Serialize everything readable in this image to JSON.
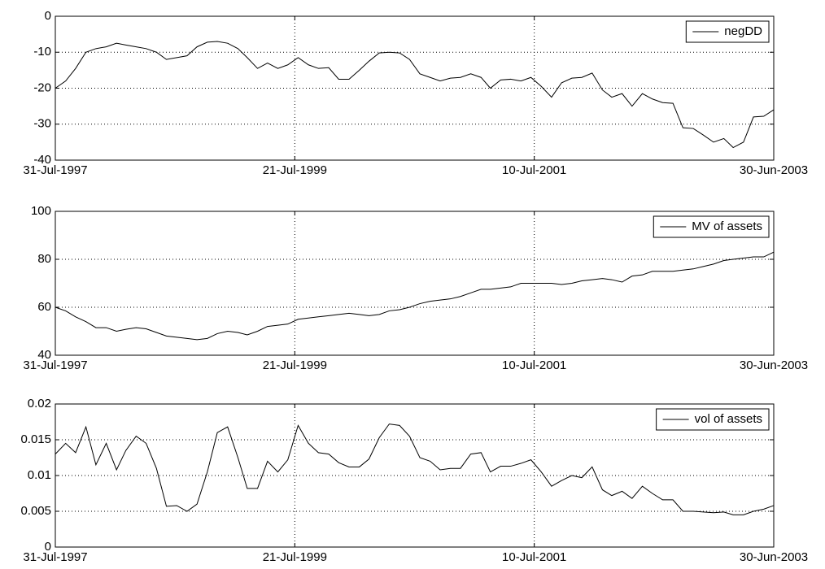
{
  "chart_data": [
    {
      "type": "line",
      "x": [
        "1997-07-31",
        "1997-08-31",
        "1997-09-30",
        "1997-10-31",
        "1997-11-30",
        "1997-12-31",
        "1998-01-31",
        "1998-02-28",
        "1998-03-31",
        "1998-04-30",
        "1998-05-31",
        "1998-06-30",
        "1998-07-31",
        "1998-08-31",
        "1998-09-30",
        "1998-10-31",
        "1998-11-30",
        "1998-12-31",
        "1999-01-31",
        "1999-02-28",
        "1999-03-31",
        "1999-04-30",
        "1999-05-31",
        "1999-06-30",
        "1999-07-31",
        "1999-08-31",
        "1999-09-30",
        "1999-10-31",
        "1999-11-30",
        "1999-12-31",
        "2000-01-31",
        "2000-02-29",
        "2000-03-31",
        "2000-04-30",
        "2000-05-31",
        "2000-06-30",
        "2000-07-31",
        "2000-08-31",
        "2000-09-30",
        "2000-10-31",
        "2000-11-30",
        "2000-12-31",
        "2001-01-31",
        "2001-02-28",
        "2001-03-31",
        "2001-04-30",
        "2001-05-31",
        "2001-06-30",
        "2001-07-31",
        "2001-08-31",
        "2001-09-30",
        "2001-10-31",
        "2001-11-30",
        "2001-12-31",
        "2002-01-31",
        "2002-02-28",
        "2002-03-31",
        "2002-04-30",
        "2002-05-31",
        "2002-06-30",
        "2002-07-31",
        "2002-08-31",
        "2002-09-30",
        "2002-10-31",
        "2002-11-30",
        "2002-12-31",
        "2003-01-31",
        "2003-02-28",
        "2003-03-31",
        "2003-04-30",
        "2003-05-31",
        "2003-06-30"
      ],
      "series": [
        {
          "name": "negDD",
          "color": "#000000",
          "values": [
            -20,
            -18,
            -14.5,
            -10,
            -9,
            -8.5,
            -7.5,
            -8,
            -8.5,
            -9,
            -10,
            -12,
            -11.5,
            -11,
            -8.5,
            -7.2,
            -7,
            -7.5,
            -9,
            -11.5,
            -14.5,
            -13,
            -14.5,
            -13.5,
            -11.5,
            -13.5,
            -14.5,
            -14.3,
            -17.5,
            -17.5,
            -15,
            -12.5,
            -10.2,
            -10,
            -10.2,
            -12,
            -16,
            -17,
            -18,
            -17.2,
            -17,
            -16,
            -17,
            -20,
            -17.7,
            -17.5,
            -18,
            -17,
            -19.5,
            -22.5,
            -18.5,
            -17.2,
            -17,
            -15.8,
            -20.5,
            -22.5,
            -21.5,
            -25,
            -21.5,
            -23,
            -24,
            -24.2,
            -31,
            -31.2,
            -33,
            -35,
            -34,
            -36.5,
            -35,
            -28,
            -27.8,
            -26
          ]
        }
      ],
      "xlim": [
        "1997-07-31",
        "2003-06-30"
      ],
      "xticks": [
        {
          "value": "1997-07-31",
          "label": "31-Jul-1997"
        },
        {
          "value": "1999-07-21",
          "label": "21-Jul-1999"
        },
        {
          "value": "2001-07-10",
          "label": "10-Jul-2001"
        },
        {
          "value": "2003-06-30",
          "label": "30-Jun-2003"
        }
      ],
      "ylim": [
        -40,
        0
      ],
      "yticks": [
        -40,
        -30,
        -20,
        -10,
        0
      ],
      "grid": true,
      "legend": "upper right"
    },
    {
      "type": "line",
      "x": [
        "1997-07-31",
        "1997-08-31",
        "1997-09-30",
        "1997-10-31",
        "1997-11-30",
        "1997-12-31",
        "1998-01-31",
        "1998-02-28",
        "1998-03-31",
        "1998-04-30",
        "1998-05-31",
        "1998-06-30",
        "1998-07-31",
        "1998-08-31",
        "1998-09-30",
        "1998-10-31",
        "1998-11-30",
        "1998-12-31",
        "1999-01-31",
        "1999-02-28",
        "1999-03-31",
        "1999-04-30",
        "1999-05-31",
        "1999-06-30",
        "1999-07-31",
        "1999-08-31",
        "1999-09-30",
        "1999-10-31",
        "1999-11-30",
        "1999-12-31",
        "2000-01-31",
        "2000-02-29",
        "2000-03-31",
        "2000-04-30",
        "2000-05-31",
        "2000-06-30",
        "2000-07-31",
        "2000-08-31",
        "2000-09-30",
        "2000-10-31",
        "2000-11-30",
        "2000-12-31",
        "2001-01-31",
        "2001-02-28",
        "2001-03-31",
        "2001-04-30",
        "2001-05-31",
        "2001-06-30",
        "2001-07-31",
        "2001-08-31",
        "2001-09-30",
        "2001-10-31",
        "2001-11-30",
        "2001-12-31",
        "2002-01-31",
        "2002-02-28",
        "2002-03-31",
        "2002-04-30",
        "2002-05-31",
        "2002-06-30",
        "2002-07-31",
        "2002-08-31",
        "2002-09-30",
        "2002-10-31",
        "2002-11-30",
        "2002-12-31",
        "2003-01-31",
        "2003-02-28",
        "2003-03-31",
        "2003-04-30",
        "2003-05-31",
        "2003-06-30"
      ],
      "series": [
        {
          "name": "MV of assets",
          "color": "#000000",
          "values": [
            60,
            58.5,
            56,
            54,
            51.5,
            51.5,
            50,
            50.8,
            51.5,
            51,
            49.5,
            48,
            47.5,
            47,
            46.5,
            47,
            49,
            50,
            49.5,
            48.5,
            50,
            52,
            52.5,
            53,
            55,
            55.5,
            56,
            56.5,
            57,
            57.5,
            57,
            56.5,
            57,
            58.5,
            59,
            60,
            61.5,
            62.5,
            63,
            63.5,
            64.5,
            66,
            67.5,
            67.5,
            68,
            68.5,
            70,
            70,
            70,
            70,
            69.5,
            70,
            71,
            71.5,
            72,
            71.5,
            70.5,
            73,
            73.5,
            75,
            75,
            75,
            75.5,
            76,
            77,
            78,
            79.5,
            80,
            80.5,
            81,
            81,
            83
          ]
        }
      ],
      "xlim": [
        "1997-07-31",
        "2003-06-30"
      ],
      "xticks": [
        {
          "value": "1997-07-31",
          "label": "31-Jul-1997"
        },
        {
          "value": "1999-07-21",
          "label": "21-Jul-1999"
        },
        {
          "value": "2001-07-10",
          "label": "10-Jul-2001"
        },
        {
          "value": "2003-06-30",
          "label": "30-Jun-2003"
        }
      ],
      "ylim": [
        40,
        100
      ],
      "yticks": [
        40,
        60,
        80,
        100
      ],
      "grid": true,
      "legend": "upper right"
    },
    {
      "type": "line",
      "x": [
        "1997-07-31",
        "1997-08-31",
        "1997-09-30",
        "1997-10-31",
        "1997-11-30",
        "1997-12-31",
        "1998-01-31",
        "1998-02-28",
        "1998-03-31",
        "1998-04-30",
        "1998-05-31",
        "1998-06-30",
        "1998-07-31",
        "1998-08-31",
        "1998-09-30",
        "1998-10-31",
        "1998-11-30",
        "1998-12-31",
        "1999-01-31",
        "1999-02-28",
        "1999-03-31",
        "1999-04-30",
        "1999-05-31",
        "1999-06-30",
        "1999-07-31",
        "1999-08-31",
        "1999-09-30",
        "1999-10-31",
        "1999-11-30",
        "1999-12-31",
        "2000-01-31",
        "2000-02-29",
        "2000-03-31",
        "2000-04-30",
        "2000-05-31",
        "2000-06-30",
        "2000-07-31",
        "2000-08-31",
        "2000-09-30",
        "2000-10-31",
        "2000-11-30",
        "2000-12-31",
        "2001-01-31",
        "2001-02-28",
        "2001-03-31",
        "2001-04-30",
        "2001-05-31",
        "2001-06-30",
        "2001-07-31",
        "2001-08-31",
        "2001-09-30",
        "2001-10-31",
        "2001-11-30",
        "2001-12-31",
        "2002-01-31",
        "2002-02-28",
        "2002-03-31",
        "2002-04-30",
        "2002-05-31",
        "2002-06-30",
        "2002-07-31",
        "2002-08-31",
        "2002-09-30",
        "2002-10-31",
        "2002-11-30",
        "2002-12-31",
        "2003-01-31",
        "2003-02-28",
        "2003-03-31",
        "2003-04-30",
        "2003-05-31",
        "2003-06-30"
      ],
      "series": [
        {
          "name": "vol of assets",
          "color": "#000000",
          "values": [
            0.013,
            0.0145,
            0.0132,
            0.0168,
            0.0115,
            0.0145,
            0.0108,
            0.0135,
            0.0155,
            0.0145,
            0.011,
            0.0057,
            0.0058,
            0.005,
            0.006,
            0.0105,
            0.016,
            0.0168,
            0.0125,
            0.0082,
            0.0082,
            0.012,
            0.0105,
            0.0122,
            0.017,
            0.0145,
            0.0132,
            0.013,
            0.0118,
            0.0112,
            0.0112,
            0.0123,
            0.0153,
            0.0172,
            0.017,
            0.0155,
            0.0125,
            0.012,
            0.0108,
            0.011,
            0.011,
            0.013,
            0.0132,
            0.0105,
            0.0113,
            0.0113,
            0.0117,
            0.0122,
            0.0105,
            0.0085,
            0.0093,
            0.01,
            0.0097,
            0.0112,
            0.008,
            0.0072,
            0.0078,
            0.0068,
            0.0085,
            0.0075,
            0.0066,
            0.0066,
            0.005,
            0.005,
            0.0049,
            0.0048,
            0.0049,
            0.0045,
            0.0045,
            0.005,
            0.0053,
            0.0058
          ]
        }
      ],
      "xlim": [
        "1997-07-31",
        "2003-06-30"
      ],
      "xticks": [
        {
          "value": "1997-07-31",
          "label": "31-Jul-1997"
        },
        {
          "value": "1999-07-21",
          "label": "21-Jul-1999"
        },
        {
          "value": "2001-07-10",
          "label": "10-Jul-2001"
        },
        {
          "value": "2003-06-30",
          "label": "30-Jun-2003"
        }
      ],
      "ylim": [
        0,
        0.02
      ],
      "yticks": [
        0,
        0.005,
        0.01,
        0.015,
        0.02
      ],
      "grid": true,
      "legend": "upper right"
    }
  ]
}
